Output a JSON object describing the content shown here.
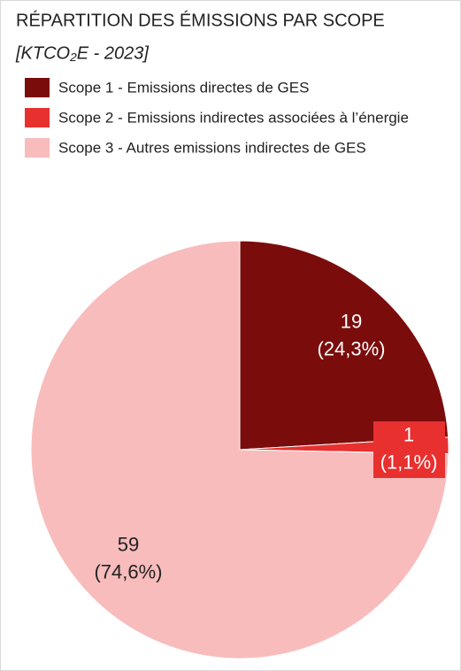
{
  "chart_data": {
    "type": "pie",
    "title": "RÉPARTITION DES ÉMISSIONS PAR SCOPE",
    "subtitle": "[KTCO₂E - 2023]",
    "categories": [
      "Scope 1 - Emissions directes de GES",
      "Scope 2 - Emissions indirectes associées à l’énergie",
      "Scope 3 - Autres emissions indirectes de GES"
    ],
    "values": [
      19,
      1,
      59
    ],
    "value_labels": [
      [
        "19",
        "(24,3%)"
      ],
      [
        "1",
        "(1,1%)"
      ],
      [
        "59",
        "(74,6%)"
      ]
    ],
    "colors": [
      "#7b0c0c",
      "#e8302f",
      "#f8bcbc"
    ],
    "legend": "top-left"
  }
}
